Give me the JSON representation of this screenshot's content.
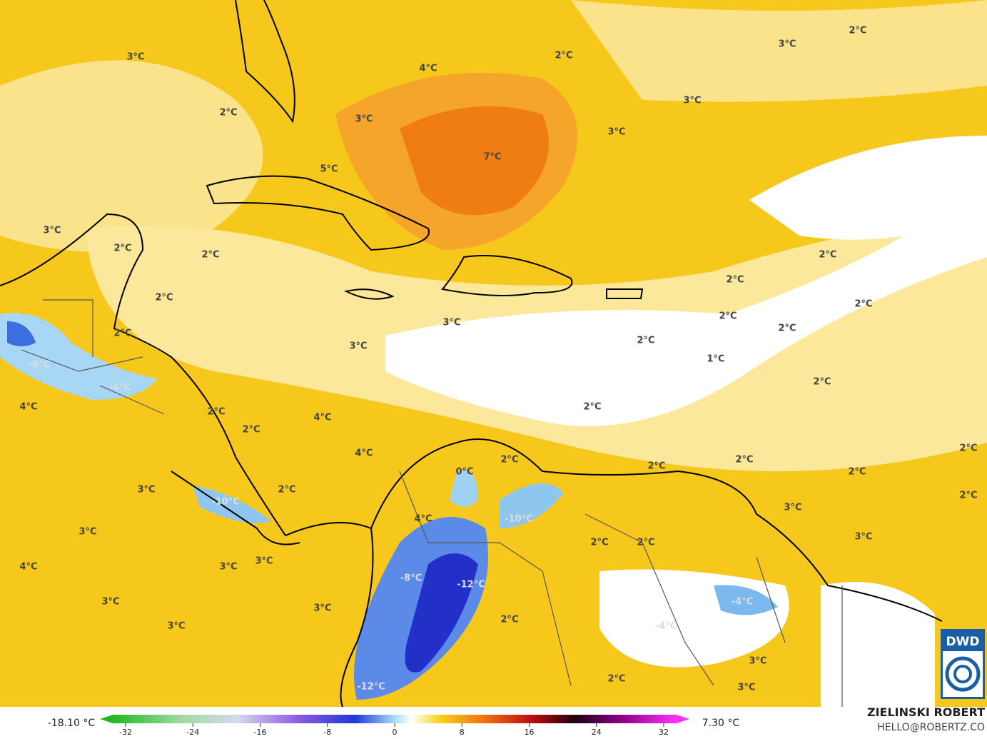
{
  "labels": [
    "3°C",
    "2°C",
    "2°C",
    "3°C",
    "4°C",
    "3°C",
    "2°C",
    "3°C",
    "3°C",
    "7°C",
    "5°C",
    "3°C",
    "2°C",
    "2°C",
    "2°C",
    "2°C",
    "2°C",
    "2°C",
    "2°C",
    "3°C",
    "2°C",
    "2°C",
    "2°C",
    "3°C",
    "1°C",
    "-6°C",
    "2°C",
    "-4°C",
    "4°C",
    "2°C",
    "2°C",
    "4°C",
    "2°C",
    "4°C",
    "2°C",
    "2°C",
    "2°C",
    "2°C",
    "0°C",
    "2°C",
    "3°C",
    "2°C",
    "2°C",
    "-10°C",
    "3°C",
    "4°C",
    "-10°C",
    "3°C",
    "3°C",
    "2°C",
    "2°C",
    "4°C",
    "3°C",
    "3°C",
    "-8°C",
    "-12°C",
    "-4°C",
    "3°C",
    "3°C",
    "2°C",
    "-4°C",
    "3°C",
    "3°C",
    "2°C",
    "-12°C",
    "3°C"
  ],
  "colorbar": {
    "min_label": "-18.10 °C",
    "max_label": "7.30 °C",
    "ticks": [
      -32,
      -24,
      -16,
      -8,
      0,
      8,
      16,
      24,
      32
    ]
  },
  "credit": {
    "author": "ZIELINSKI ROBERT",
    "contact": "HELLO@ROBERTZ.CO"
  },
  "logo": "DWD"
}
